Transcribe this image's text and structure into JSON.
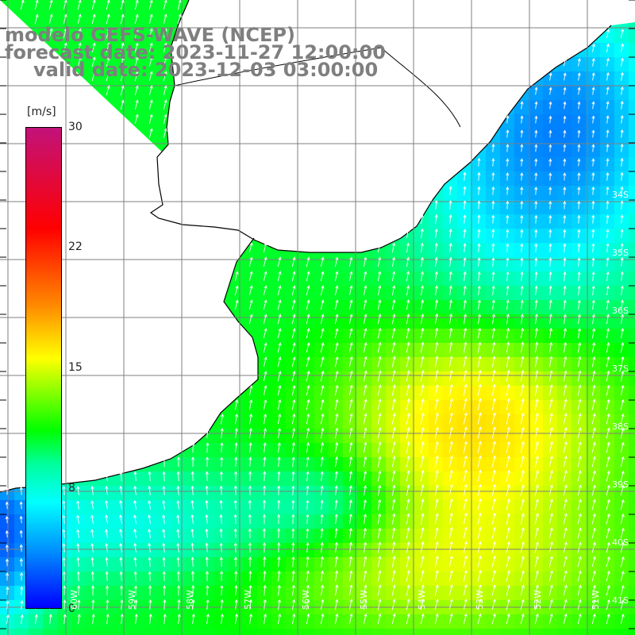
{
  "title": {
    "model": "modelo GEFS-WAVE (NCEP)",
    "forecast": "forecast date: 2023-11-27 12:00:00",
    "valid": "valid date: 2023-12-03 03:00:00"
  },
  "colorbar": {
    "unit": "[m/s]",
    "ticks": [
      "30",
      "22",
      "15",
      "8",
      "0"
    ],
    "min": 0,
    "max": 30
  },
  "map": {
    "variable": "wind speed with direction arrows",
    "lat_labels": [
      "34S",
      "35S",
      "36S",
      "37S",
      "38S",
      "39S",
      "40S",
      "41S"
    ],
    "lon_labels": [
      "60W",
      "59W",
      "58W",
      "57W",
      "56W",
      "55W",
      "54W",
      "53W",
      "52W",
      "51W"
    ],
    "land_color": "#ffffff",
    "coast_color": "#000000",
    "grid_color": "#7f7f7f",
    "arrow_color": "#ffffff"
  }
}
